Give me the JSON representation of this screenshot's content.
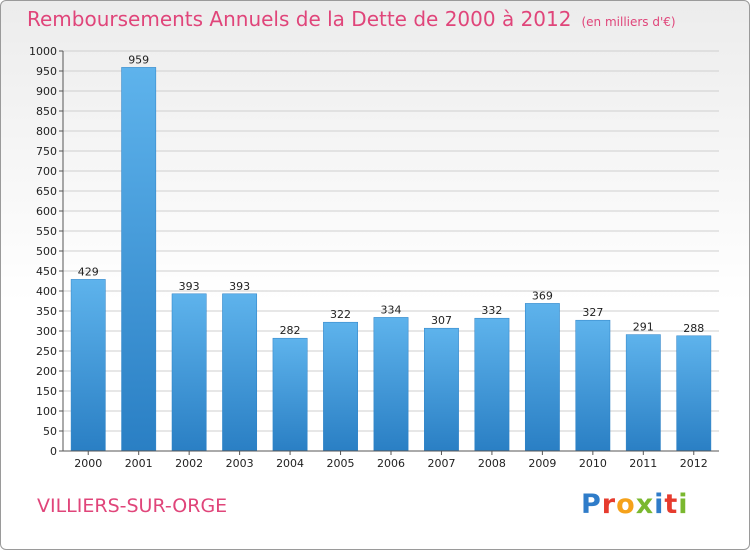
{
  "chart_data": {
    "type": "bar",
    "title": "Remboursements Annuels de la Dette de 2000 à 2012",
    "unit": "(en milliers d'€)",
    "categories": [
      "2000",
      "2001",
      "2002",
      "2003",
      "2004",
      "2005",
      "2006",
      "2007",
      "2008",
      "2009",
      "2010",
      "2011",
      "2012"
    ],
    "values": [
      429,
      959,
      393,
      393,
      282,
      322,
      334,
      307,
      332,
      369,
      327,
      291,
      288
    ],
    "ylim": [
      0,
      1000
    ],
    "ytick_step": 50,
    "grid": true,
    "bar_color": "#3d95d9"
  },
  "footer": {
    "city": "VILLIERS-SUR-ORGE",
    "logo_letters": [
      "P",
      "r",
      "o",
      "x",
      "i",
      "t",
      "i"
    ]
  }
}
